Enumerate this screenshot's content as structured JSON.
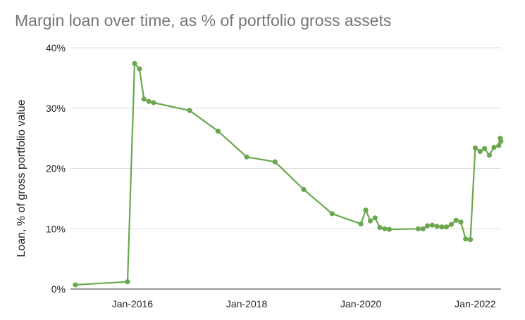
{
  "chart_data": {
    "type": "line",
    "title": "Margin loan over time, as % of portfolio gross assets",
    "xlabel": "",
    "ylabel": "Loan, % of gross portfolio value",
    "xlim": [
      "2014-12-01",
      "2022-06-15"
    ],
    "ylim": [
      0,
      40
    ],
    "y_ticks": [
      {
        "value": 0,
        "label": "0%"
      },
      {
        "value": 10,
        "label": "10%"
      },
      {
        "value": 20,
        "label": "20%"
      },
      {
        "value": 30,
        "label": "30%"
      },
      {
        "value": 40,
        "label": "40%"
      }
    ],
    "x_ticks": [
      {
        "value": "2016-01-01",
        "label": "Jan-2016"
      },
      {
        "value": "2018-01-01",
        "label": "Jan-2018"
      },
      {
        "value": "2020-01-01",
        "label": "Jan-2020"
      },
      {
        "value": "2022-01-01",
        "label": "Jan-2022"
      }
    ],
    "grid": true,
    "legend": "none",
    "series": [
      {
        "color": "#6aa84f",
        "points": [
          {
            "x": "2015-01-01",
            "y": 0.7
          },
          {
            "x": "2015-12-01",
            "y": 1.2
          },
          {
            "x": "2016-01-15",
            "y": 37.4
          },
          {
            "x": "2016-02-15",
            "y": 36.5
          },
          {
            "x": "2016-03-15",
            "y": 31.5
          },
          {
            "x": "2016-04-15",
            "y": 31.1
          },
          {
            "x": "2016-05-15",
            "y": 30.9
          },
          {
            "x": "2017-01-01",
            "y": 29.6
          },
          {
            "x": "2017-07-01",
            "y": 26.2
          },
          {
            "x": "2018-01-01",
            "y": 21.9
          },
          {
            "x": "2018-07-01",
            "y": 21.1
          },
          {
            "x": "2019-01-01",
            "y": 16.5
          },
          {
            "x": "2019-07-01",
            "y": 12.5
          },
          {
            "x": "2020-01-01",
            "y": 10.8
          },
          {
            "x": "2020-02-01",
            "y": 13.1
          },
          {
            "x": "2020-03-01",
            "y": 11.3
          },
          {
            "x": "2020-04-01",
            "y": 11.8
          },
          {
            "x": "2020-05-01",
            "y": 10.2
          },
          {
            "x": "2020-06-01",
            "y": 10.0
          },
          {
            "x": "2020-07-01",
            "y": 9.9
          },
          {
            "x": "2021-01-01",
            "y": 10.0
          },
          {
            "x": "2021-02-01",
            "y": 10.0
          },
          {
            "x": "2021-03-01",
            "y": 10.5
          },
          {
            "x": "2021-04-01",
            "y": 10.6
          },
          {
            "x": "2021-05-01",
            "y": 10.4
          },
          {
            "x": "2021-06-01",
            "y": 10.3
          },
          {
            "x": "2021-07-01",
            "y": 10.3
          },
          {
            "x": "2021-08-01",
            "y": 10.7
          },
          {
            "x": "2021-09-01",
            "y": 11.4
          },
          {
            "x": "2021-10-01",
            "y": 11.1
          },
          {
            "x": "2021-11-01",
            "y": 8.3
          },
          {
            "x": "2021-12-01",
            "y": 8.2
          },
          {
            "x": "2022-01-01",
            "y": 23.4
          },
          {
            "x": "2022-02-01",
            "y": 22.8
          },
          {
            "x": "2022-03-01",
            "y": 23.3
          },
          {
            "x": "2022-04-01",
            "y": 22.2
          },
          {
            "x": "2022-05-01",
            "y": 23.5
          },
          {
            "x": "2022-06-01",
            "y": 23.8
          },
          {
            "x": "2022-06-10",
            "y": 25.0
          },
          {
            "x": "2022-06-14",
            "y": 24.5
          }
        ]
      }
    ]
  }
}
